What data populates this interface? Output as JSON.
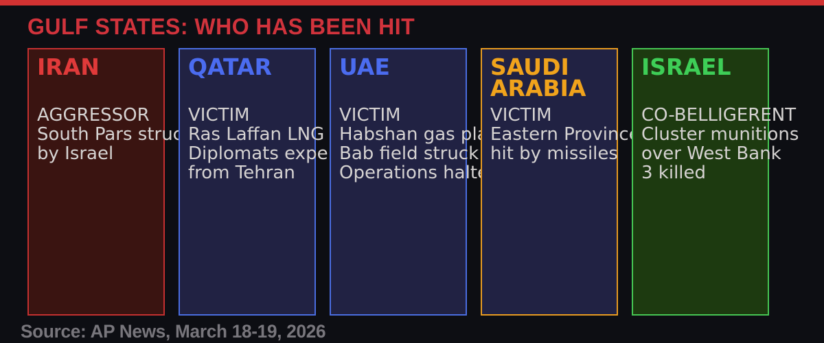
{
  "header": {
    "title": "GULF STATES: WHO HAS BEEN HIT",
    "title_color": "#d1333c",
    "accent_bar_color": "#d23232"
  },
  "cards": [
    {
      "id": "iran",
      "title": "IRAN",
      "role": "AGGRESSOR",
      "details": [
        "South Pars struck",
        "by Israel"
      ],
      "title_color": "#e03a3a",
      "border_color": "#c43030",
      "background_color": "#3a1411"
    },
    {
      "id": "qatar",
      "title": "QATAR",
      "role": "VICTIM",
      "details": [
        "Ras Laffan LNG",
        "Diplomats expelled",
        "from Tehran"
      ],
      "title_color": "#4b6cf0",
      "border_color": "#4a6de0",
      "background_color": "#212243"
    },
    {
      "id": "uae",
      "title": "UAE",
      "role": "VICTIM",
      "details": [
        "Habshan gas plant",
        "Bab field struck",
        "Operations halted"
      ],
      "title_color": "#4b6cf0",
      "border_color": "#4a6de0",
      "background_color": "#212243"
    },
    {
      "id": "saudi-arabia",
      "title": "SAUDI ARABIA",
      "role": "VICTIM",
      "details": [
        "Eastern Province",
        "hit by missiles"
      ],
      "title_color": "#f0a31c",
      "border_color": "#e89b20",
      "background_color": "#212243"
    },
    {
      "id": "israel",
      "title": "ISRAEL",
      "role": "CO-BELLIGERENT",
      "details": [
        "Cluster munitions",
        "over West Bank",
        "3 killed"
      ],
      "title_color": "#3ece57",
      "border_color": "#46c553",
      "background_color": "#1d3a10"
    }
  ],
  "footer": {
    "source": "Source: AP News, March 18-19, 2026",
    "text_color": "#78767c"
  },
  "body_text_color": "#d6d3d2",
  "page_background": "#0d0e13"
}
